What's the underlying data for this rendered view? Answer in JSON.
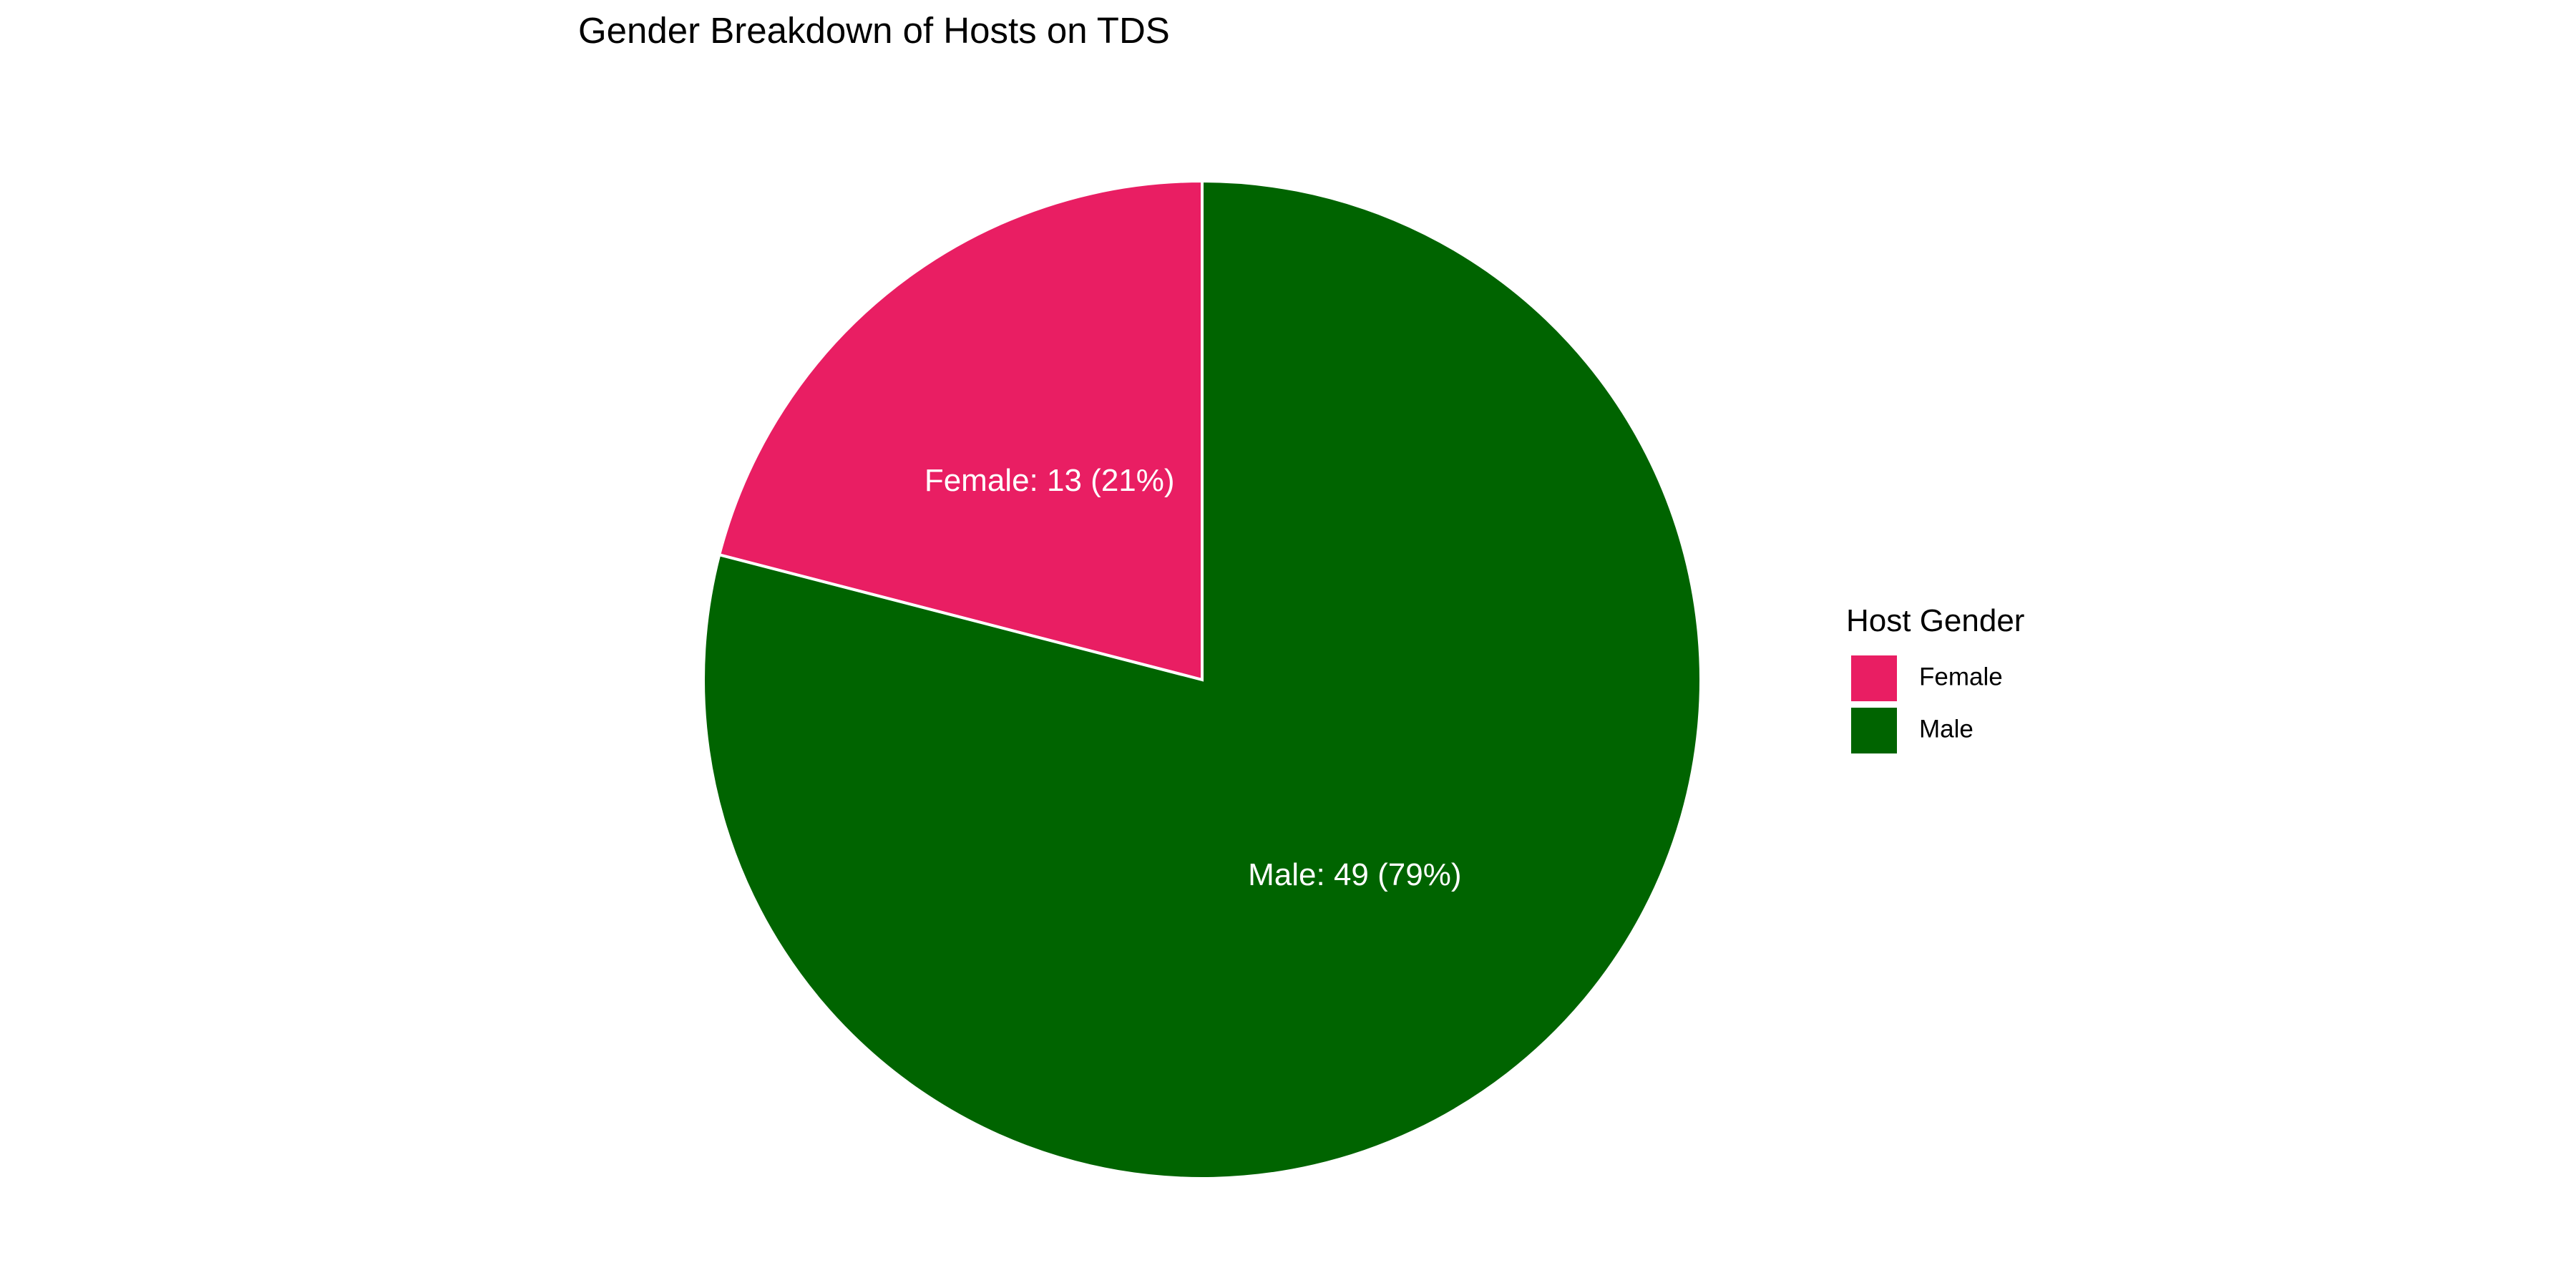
{
  "chart_data": {
    "type": "pie",
    "title": "Gender Breakdown of Hosts on TDS",
    "legend": {
      "title": "Host Gender",
      "placement": "right"
    },
    "slices": [
      {
        "label": "Female",
        "value": 13,
        "percent": 21,
        "color": "#E91E63",
        "text": "Female: 13 (21%)"
      },
      {
        "label": "Male",
        "value": 49,
        "percent": 79,
        "color": "#006400",
        "text": "Male: 49 (79%)"
      }
    ],
    "slice_border_color": "#ffffff"
  }
}
